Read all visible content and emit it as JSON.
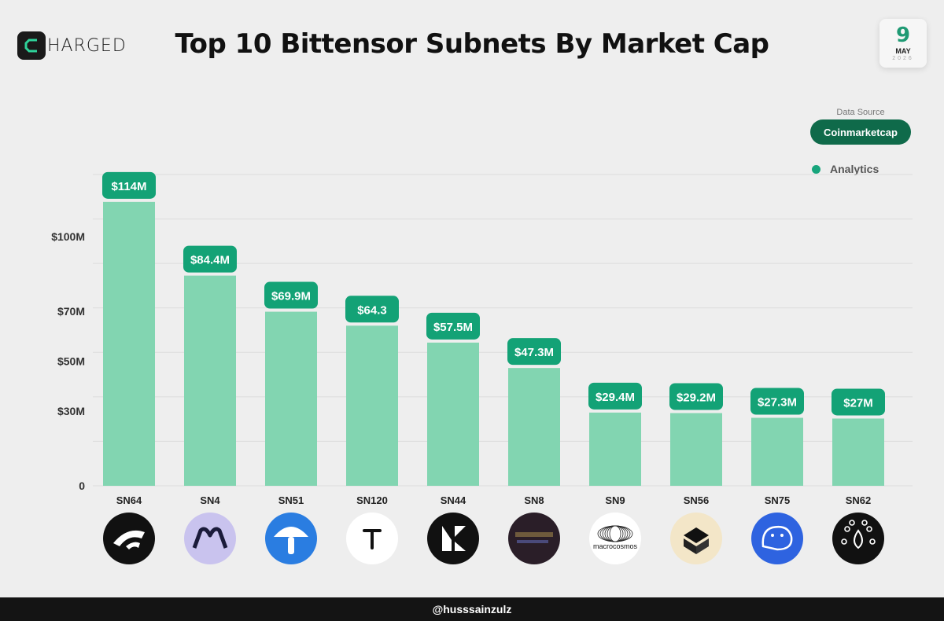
{
  "brand": {
    "logo_letter": "C",
    "logo_text": "HARGED"
  },
  "date": {
    "day": "9",
    "month": "MAY",
    "year": "2026"
  },
  "data_source": {
    "label": "Data Source",
    "value": "Coinmarketcap"
  },
  "legend": {
    "label": "Analytics"
  },
  "colors": {
    "bar": "#82d5b1",
    "label_bg": "#13a276",
    "accent": "#0f6a4a"
  },
  "footer": {
    "handle": "@husssainzulz"
  },
  "chart_data": {
    "type": "bar",
    "title": "Top 10 Bittensor Subnets By Market Cap",
    "categories": [
      "SN64",
      "SN4",
      "SN51",
      "SN120",
      "SN44",
      "SN8",
      "SN9",
      "SN56",
      "SN75",
      "SN62"
    ],
    "values": [
      114,
      84.4,
      69.9,
      64.3,
      57.5,
      47.3,
      29.4,
      29.2,
      27.3,
      27
    ],
    "data_labels": [
      "$114M",
      "$84.4M",
      "$69.9M",
      "$64.3",
      "$57.5M",
      "$47.3M",
      "$29.4M",
      "$29.2M",
      "$27.3M",
      "$27M"
    ],
    "y_ticks": [
      0,
      30,
      50,
      70,
      100
    ],
    "y_tick_labels": [
      "0",
      "$30M",
      "$50M",
      "$70M",
      "$100M"
    ],
    "ylim": [
      0,
      125
    ],
    "grid": true,
    "legend_position": "top-right",
    "icons": [
      "chutes-icon",
      "targon-icon",
      "mushroom-icon",
      "t-icon",
      "score-icon",
      "taoshi-icon",
      "macrocosmos-icon",
      "cube-icon",
      "hippius-icon",
      "drops-icon"
    ],
    "icon_texts": [
      "",
      "",
      "",
      "",
      "",
      "",
      "macrocosmos",
      "",
      "",
      ""
    ]
  }
}
